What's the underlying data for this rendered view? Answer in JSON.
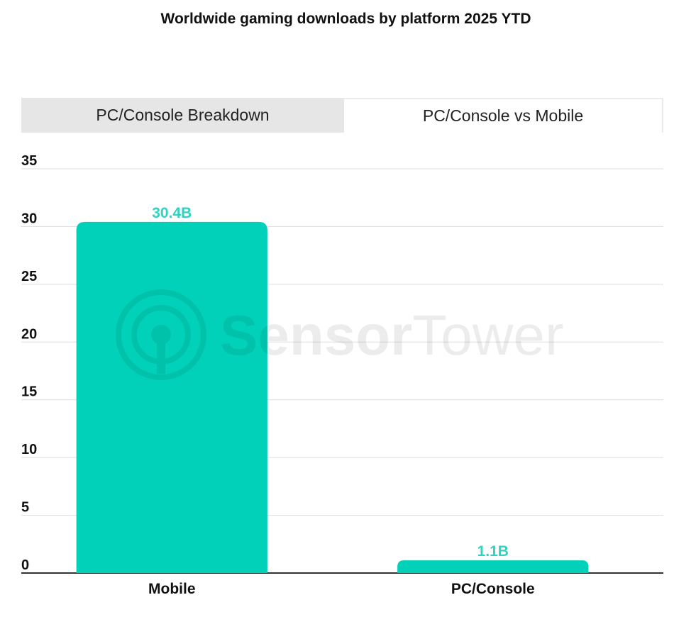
{
  "header": {
    "title": "Worldwide gaming downloads by platform 2025 YTD"
  },
  "tabs": [
    {
      "label": "PC/Console Breakdown",
      "active": false
    },
    {
      "label": "PC/Console vs Mobile",
      "active": true
    }
  ],
  "watermark": {
    "bold_part": "Sensor",
    "light_part": "Tower"
  },
  "colors": {
    "bar": "#00d1b8",
    "label": "#2fd3bf",
    "grid": "#dddddd",
    "axis": "#333333"
  },
  "chart_data": {
    "type": "bar",
    "title": "Worldwide gaming downloads by platform 2025 YTD",
    "categories": [
      "Mobile",
      "PC/Console"
    ],
    "values": [
      30.4,
      1.1
    ],
    "data_labels": [
      "30.4B",
      "1.1B"
    ],
    "xlabel": "",
    "ylabel": "",
    "ylim": [
      0,
      35
    ],
    "yticks": [
      "0",
      "5",
      "10",
      "15",
      "20",
      "25",
      "30",
      "35"
    ],
    "grid": true,
    "legend": "none"
  }
}
